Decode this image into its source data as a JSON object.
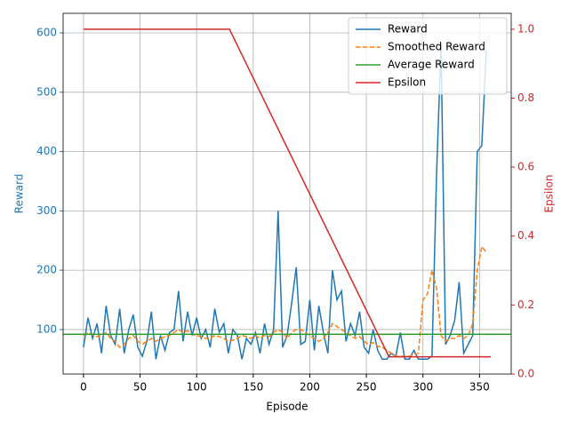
{
  "chart_data": {
    "type": "line",
    "xlabel": "Episode",
    "ylabel": "Reward",
    "y2label": "Epsilon",
    "xlim": [
      -18,
      378
    ],
    "xticks": [
      0,
      50,
      100,
      150,
      200,
      250,
      300,
      350
    ],
    "ylim": [
      25,
      633
    ],
    "yticks": [
      100,
      200,
      300,
      400,
      500,
      600
    ],
    "y2lim": [
      0,
      1.046
    ],
    "y2ticks": [
      {
        "value": 0,
        "label": "0.0"
      },
      {
        "value": 0.2,
        "label": "0.2"
      },
      {
        "value": 0.4,
        "label": "0.4"
      },
      {
        "value": 0.6,
        "label": "0.6"
      },
      {
        "value": 0.8,
        "label": "0.8"
      },
      {
        "value": 1,
        "label": "1.0"
      }
    ],
    "grid": true,
    "legend": "upper right",
    "series": [
      {
        "name": "Reward",
        "color": "#1f77b4",
        "style": "solid",
        "x": [
          0,
          4,
          8,
          12,
          16,
          20,
          24,
          28,
          32,
          36,
          40,
          44,
          48,
          52,
          56,
          60,
          64,
          68,
          72,
          76,
          80,
          84,
          88,
          92,
          96,
          100,
          104,
          108,
          112,
          116,
          120,
          124,
          128,
          132,
          136,
          140,
          144,
          148,
          152,
          156,
          160,
          164,
          168,
          172,
          176,
          180,
          184,
          188,
          192,
          196,
          200,
          204,
          208,
          212,
          216,
          220,
          224,
          228,
          232,
          236,
          240,
          244,
          248,
          252,
          256,
          260,
          264,
          268,
          272,
          276,
          280,
          284,
          288,
          292,
          296,
          300,
          304,
          308,
          312,
          316,
          320,
          324,
          328,
          332,
          336,
          340,
          344,
          348,
          352,
          356
        ],
        "values": [
          70,
          120,
          85,
          110,
          60,
          140,
          90,
          75,
          135,
          60,
          100,
          125,
          70,
          55,
          80,
          130,
          50,
          90,
          65,
          95,
          100,
          165,
          80,
          130,
          90,
          120,
          85,
          100,
          70,
          135,
          95,
          110,
          60,
          100,
          90,
          50,
          85,
          75,
          95,
          60,
          110,
          75,
          100,
          300,
          70,
          90,
          145,
          205,
          75,
          80,
          150,
          65,
          140,
          95,
          60,
          200,
          150,
          165,
          80,
          110,
          90,
          130,
          70,
          60,
          100,
          65,
          50,
          50,
          60,
          55,
          95,
          50,
          50,
          65,
          50,
          50,
          50,
          55,
          360,
          580,
          75,
          90,
          115,
          180,
          60,
          75,
          90,
          400,
          410,
          570
        ]
      },
      {
        "name": "Smoothed Reward",
        "color": "#ff7f0e",
        "style": "dashed",
        "x": [
          0,
          4,
          8,
          12,
          16,
          20,
          24,
          28,
          32,
          36,
          40,
          44,
          48,
          52,
          56,
          60,
          64,
          68,
          72,
          76,
          80,
          84,
          88,
          92,
          96,
          100,
          104,
          108,
          112,
          116,
          120,
          124,
          128,
          132,
          136,
          140,
          144,
          148,
          152,
          156,
          160,
          164,
          168,
          172,
          176,
          180,
          184,
          188,
          192,
          196,
          200,
          204,
          208,
          212,
          216,
          220,
          224,
          228,
          232,
          236,
          240,
          244,
          248,
          252,
          256,
          260,
          264,
          268,
          272,
          276,
          280,
          284,
          288,
          292,
          296,
          300,
          304,
          308,
          312,
          316,
          320,
          324,
          328,
          332,
          336,
          340,
          344,
          348,
          352,
          356
        ],
        "values": [
          90,
          95,
          92,
          88,
          90,
          95,
          85,
          80,
          70,
          75,
          85,
          90,
          80,
          75,
          80,
          85,
          80,
          85,
          88,
          90,
          95,
          100,
          95,
          98,
          92,
          90,
          88,
          85,
          85,
          90,
          88,
          85,
          80,
          82,
          85,
          90,
          88,
          85,
          90,
          85,
          90,
          88,
          95,
          100,
          95,
          85,
          95,
          100,
          100,
          95,
          90,
          85,
          80,
          85,
          95,
          110,
          105,
          100,
          95,
          90,
          85,
          88,
          80,
          75,
          78,
          72,
          70,
          65,
          60,
          55,
          55,
          55,
          55,
          58,
          60,
          150,
          160,
          200,
          170,
          90,
          80,
          85,
          85,
          90,
          85,
          90,
          110,
          200,
          240,
          230
        ]
      },
      {
        "name": "Average Reward",
        "color": "#2ca02c",
        "style": "hline",
        "values": [
          92
        ]
      },
      {
        "name": "Epsilon",
        "color": "#d62728",
        "style": "solid",
        "axis": "y2",
        "x": [
          0,
          129,
          270,
          360
        ],
        "values": [
          1,
          1,
          0.05,
          0.05
        ]
      }
    ]
  }
}
